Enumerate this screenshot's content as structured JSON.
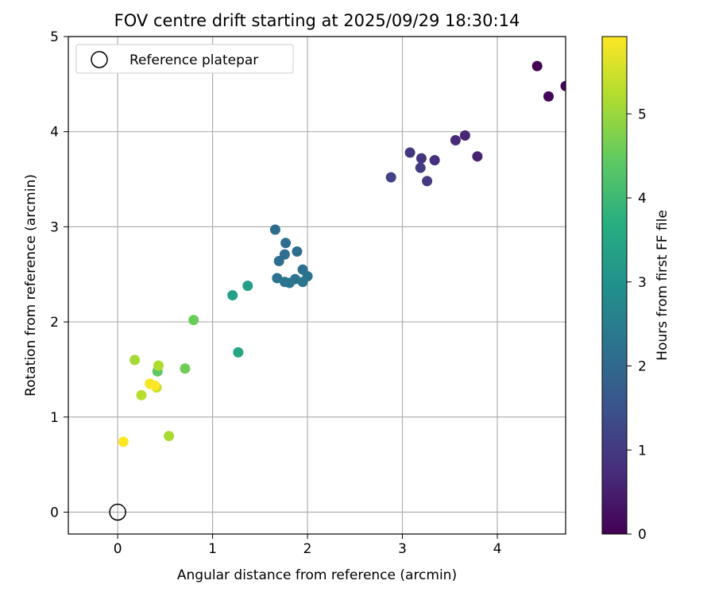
{
  "chart_data": {
    "type": "scatter",
    "title": "FOV centre drift starting at 2025/09/29 18:30:14",
    "xlabel": "Angular distance from reference (arcmin)",
    "ylabel": "Rotation from reference (arcmin)",
    "xlim": [
      -0.52,
      4.72
    ],
    "ylim": [
      -0.23,
      5.0
    ],
    "xticks": [
      0,
      1,
      2,
      3,
      4
    ],
    "yticks": [
      0,
      1,
      2,
      3,
      4,
      5
    ],
    "grid": true,
    "legend": {
      "position": "top-left",
      "entries": [
        "Reference platepar"
      ]
    },
    "reference_point": {
      "x": 0,
      "y": 0
    },
    "colorbar": {
      "label": "Hours from first FF file",
      "min": 0,
      "max": 5.92,
      "ticks": [
        0,
        1,
        2,
        3,
        4,
        5
      ],
      "colormap": "viridis"
    },
    "points": [
      {
        "x": 4.42,
        "y": 4.69,
        "hours": 0.0
      },
      {
        "x": 4.72,
        "y": 4.48,
        "hours": 0.05
      },
      {
        "x": 4.54,
        "y": 4.37,
        "hours": 0.1
      },
      {
        "x": 3.79,
        "y": 3.74,
        "hours": 0.55
      },
      {
        "x": 3.66,
        "y": 3.96,
        "hours": 0.62
      },
      {
        "x": 3.56,
        "y": 3.91,
        "hours": 0.7
      },
      {
        "x": 3.34,
        "y": 3.7,
        "hours": 0.78
      },
      {
        "x": 3.2,
        "y": 3.72,
        "hours": 0.85
      },
      {
        "x": 3.08,
        "y": 3.78,
        "hours": 0.92
      },
      {
        "x": 3.26,
        "y": 3.48,
        "hours": 1.0
      },
      {
        "x": 3.19,
        "y": 3.62,
        "hours": 1.05
      },
      {
        "x": 2.88,
        "y": 3.52,
        "hours": 1.15
      },
      {
        "x": 1.66,
        "y": 2.97,
        "hours": 2.05
      },
      {
        "x": 1.77,
        "y": 2.83,
        "hours": 2.08
      },
      {
        "x": 1.89,
        "y": 2.74,
        "hours": 2.1
      },
      {
        "x": 1.76,
        "y": 2.71,
        "hours": 2.12
      },
      {
        "x": 1.7,
        "y": 2.64,
        "hours": 2.15
      },
      {
        "x": 1.95,
        "y": 2.55,
        "hours": 2.18
      },
      {
        "x": 2.0,
        "y": 2.48,
        "hours": 2.2
      },
      {
        "x": 1.68,
        "y": 2.46,
        "hours": 2.22
      },
      {
        "x": 1.87,
        "y": 2.45,
        "hours": 2.25
      },
      {
        "x": 1.76,
        "y": 2.42,
        "hours": 2.28
      },
      {
        "x": 1.95,
        "y": 2.42,
        "hours": 2.3
      },
      {
        "x": 1.81,
        "y": 2.41,
        "hours": 2.32
      },
      {
        "x": 1.37,
        "y": 2.38,
        "hours": 3.3
      },
      {
        "x": 1.21,
        "y": 2.28,
        "hours": 3.35
      },
      {
        "x": 1.27,
        "y": 1.68,
        "hours": 3.5
      },
      {
        "x": 0.8,
        "y": 2.02,
        "hours": 4.55
      },
      {
        "x": 0.71,
        "y": 1.51,
        "hours": 4.6
      },
      {
        "x": 0.42,
        "y": 1.48,
        "hours": 4.4
      },
      {
        "x": 0.18,
        "y": 1.6,
        "hours": 5.1
      },
      {
        "x": 0.43,
        "y": 1.54,
        "hours": 5.2
      },
      {
        "x": 0.54,
        "y": 0.8,
        "hours": 5.15
      },
      {
        "x": 0.25,
        "y": 1.23,
        "hours": 5.3
      },
      {
        "x": 0.41,
        "y": 1.31,
        "hours": 5.45
      },
      {
        "x": 0.34,
        "y": 1.35,
        "hours": 5.85
      },
      {
        "x": 0.39,
        "y": 1.33,
        "hours": 5.9
      },
      {
        "x": 0.06,
        "y": 0.74,
        "hours": 5.92
      }
    ]
  }
}
